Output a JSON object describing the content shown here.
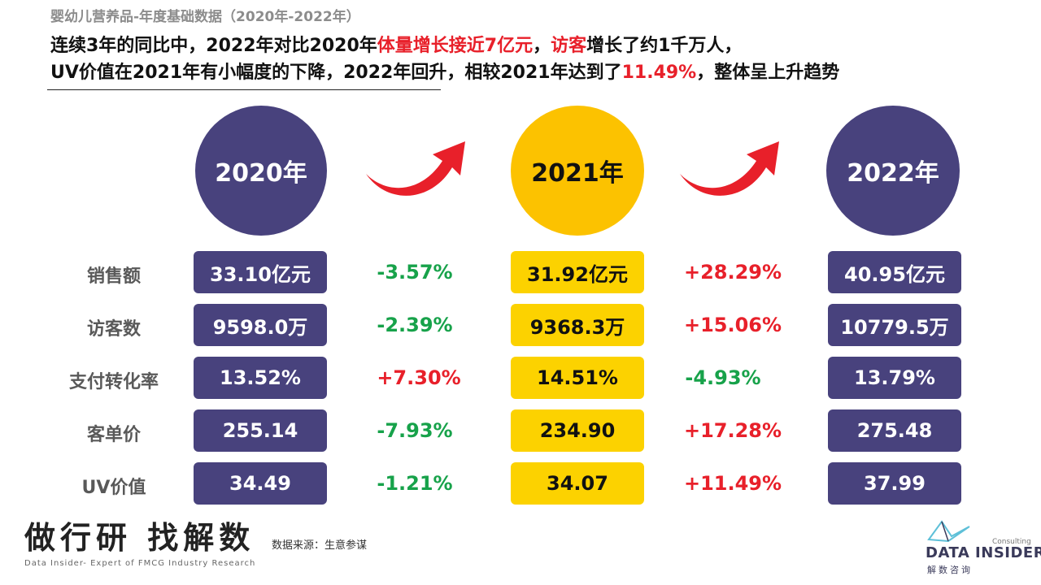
{
  "header": {
    "subtitle": "婴幼儿营养品-年度基础数据（2020年-2022年）",
    "line1": {
      "p1": "连续3年的同比中，2022年对比2020年",
      "h1": "体量增长接近7亿元",
      "p2": "，",
      "h2": "访客",
      "p3": "增长了约1千万人，"
    },
    "line2": {
      "p1": "UV价值在2021年有小幅度的下降，2022年回升，相较2021年达到了",
      "h1": "11.49%",
      "p2": "，整体呈上升趋势"
    }
  },
  "years": [
    "2020年",
    "2021年",
    "2022年"
  ],
  "row_labels": [
    "销售额",
    "访客数",
    "支付转化率",
    "客单价",
    "UV价值"
  ],
  "values": {
    "y2020": [
      "33.10亿元",
      "9598.0万",
      "13.52%",
      "255.14",
      "34.49"
    ],
    "y2021": [
      "31.92亿元",
      "9368.3万",
      "14.51%",
      "234.90",
      "34.07"
    ],
    "y2022": [
      "40.95亿元",
      "10779.5万",
      "13.79%",
      "275.48",
      "37.99"
    ]
  },
  "changes": {
    "c2021": [
      "-3.57%",
      "-2.39%",
      "+7.30%",
      "-7.93%",
      "-1.21%"
    ],
    "c2022": [
      "+28.29%",
      "+15.06%",
      "-4.93%",
      "+17.28%",
      "+11.49%"
    ]
  },
  "colors": {
    "purple": "#48427d",
    "yellow": "#fcc200",
    "positive": "#e8202a",
    "negative": "#17a24a",
    "arrow": "#e8202a"
  },
  "footer": {
    "brand_cn": "做行研 找解数",
    "brand_en": "Data Insider- Expert of FMCG Industry Research",
    "source": "数据来源：生意参谋",
    "logo_consulting": "Consulting",
    "logo_name": "DATA INSIDER",
    "logo_cn": "解数咨询"
  }
}
